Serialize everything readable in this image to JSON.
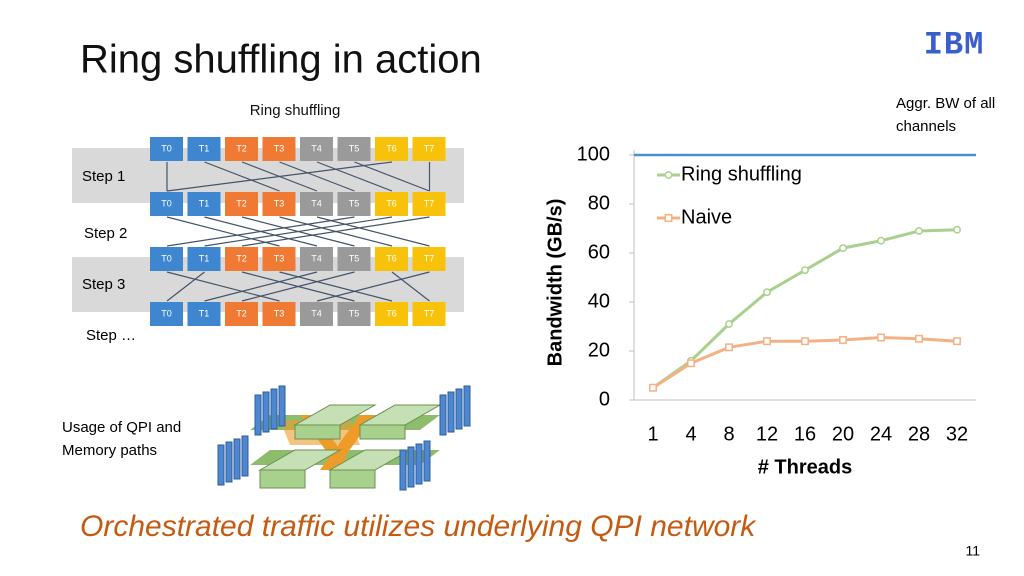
{
  "slide": {
    "title": "Ring shuffling in action",
    "logo": "IBM",
    "footer": "Orchestrated traffic utilizes underlying QPI network",
    "page_number": "11"
  },
  "diagram": {
    "title": "Ring shuffling",
    "thread_labels": [
      "T0",
      "T1",
      "T2",
      "T3",
      "T4",
      "T5",
      "T6",
      "T7"
    ],
    "steps": [
      "Step 1",
      "Step 2",
      "Step 3",
      "Step …"
    ],
    "qpi_caption": [
      "Usage of QPI and",
      "Memory paths"
    ]
  },
  "chart_data": {
    "type": "line",
    "x_label": "# Threads",
    "y_label": "Bandwidth (GB/s)",
    "categories": [
      "1",
      "4",
      "8",
      "12",
      "16",
      "20",
      "24",
      "28",
      "32"
    ],
    "series": [
      {
        "name": "Ring shuffling",
        "color": "#a9d18e",
        "marker": "circle",
        "values": [
          5,
          16,
          31,
          44,
          53,
          62,
          65,
          69,
          69.5
        ]
      },
      {
        "name": "Naive",
        "color": "#f4b183",
        "marker": "square",
        "values": [
          5,
          15,
          21.5,
          24,
          24,
          24.5,
          25.5,
          25,
          24
        ]
      }
    ],
    "reference_line": {
      "value": 100,
      "color": "#4a8fd4",
      "label": [
        "Aggr. BW of all",
        "channels"
      ]
    },
    "ylim": [
      0,
      100
    ],
    "yticks": [
      0,
      20,
      40,
      60,
      80,
      100
    ],
    "legend": "top-left"
  }
}
